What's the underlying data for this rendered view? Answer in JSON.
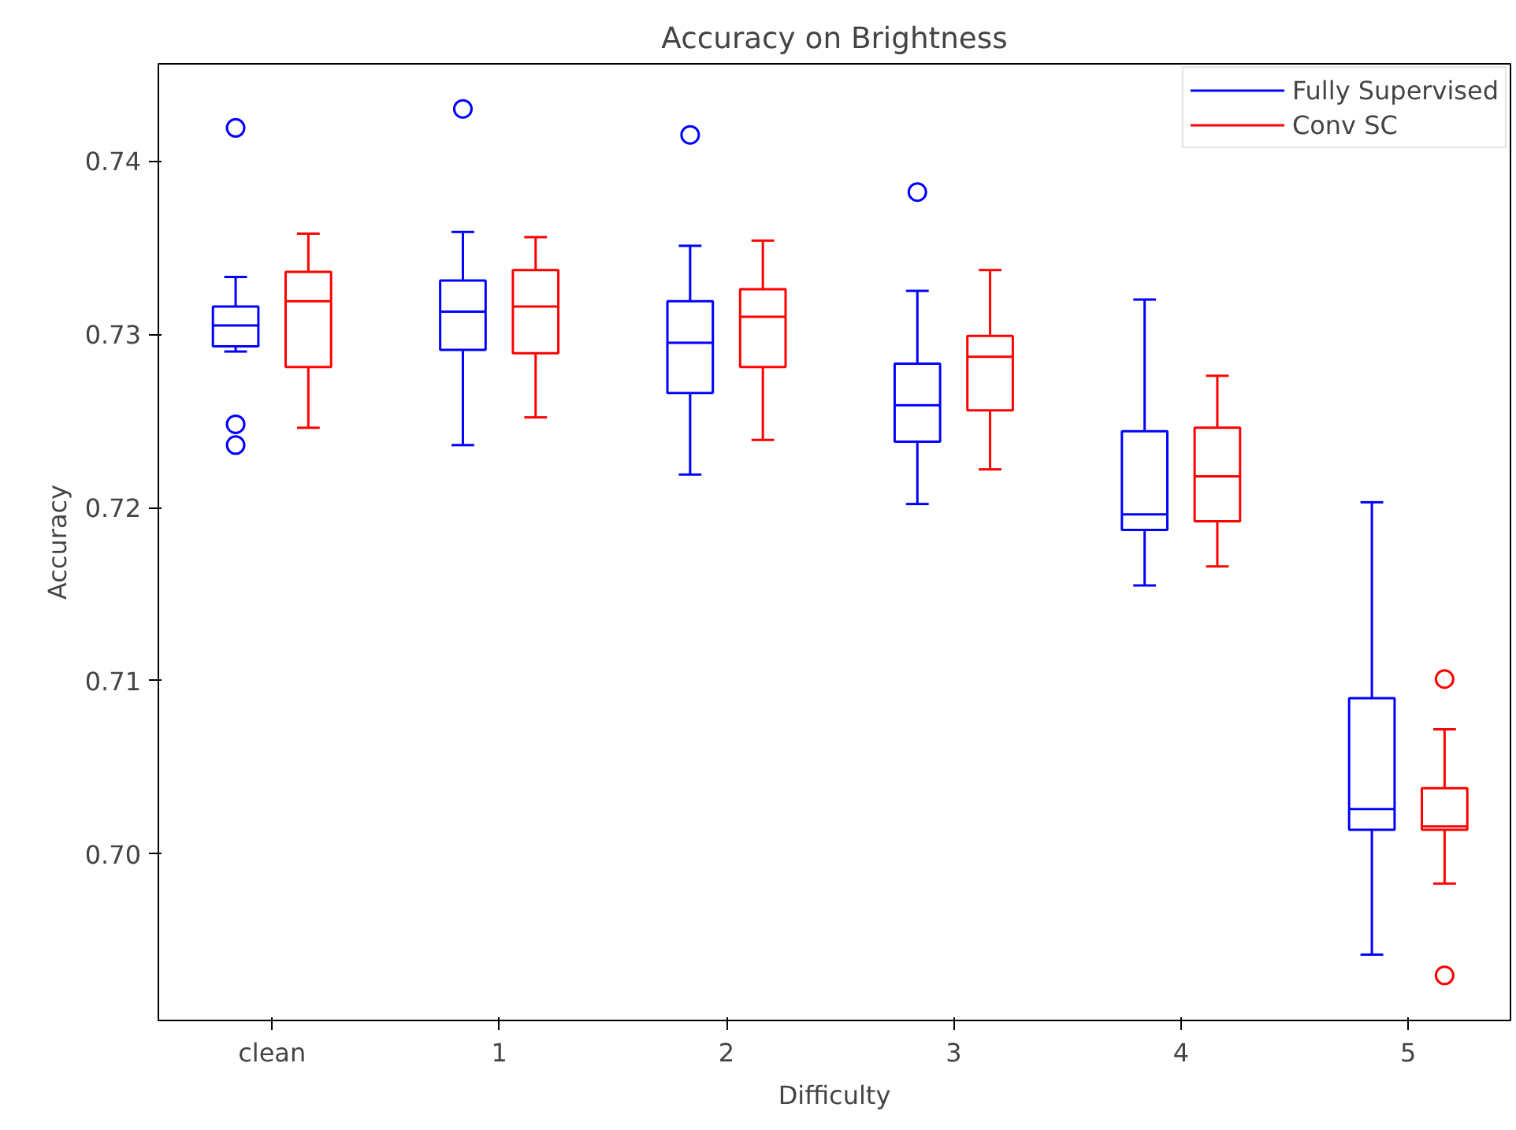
{
  "chart_data": {
    "type": "box",
    "title": "Accuracy on Brightness",
    "xlabel": "Difficulty",
    "ylabel": "Accuracy",
    "categories": [
      "clean",
      "1",
      "2",
      "3",
      "4",
      "5"
    ],
    "ylim": [
      0.6904,
      0.7456
    ],
    "yticks": [
      {
        "value": 0.7,
        "label": "0.70"
      },
      {
        "value": 0.71,
        "label": "0.71"
      },
      {
        "value": 0.72,
        "label": "0.72"
      },
      {
        "value": 0.73,
        "label": "0.73"
      },
      {
        "value": 0.74,
        "label": "0.74"
      }
    ],
    "grid": false,
    "legend": "top right",
    "series": [
      {
        "name": "Fully Supervised",
        "color": "#0000ff",
        "boxes": [
          {
            "low": 0.729,
            "q1": 0.7293,
            "median": 0.7305,
            "q3": 0.7316,
            "high": 0.7333,
            "outliers": [
              0.7419,
              0.7248,
              0.7236
            ]
          },
          {
            "low": 0.7236,
            "q1": 0.7291,
            "median": 0.7313,
            "q3": 0.7331,
            "high": 0.7359,
            "outliers": [
              0.743
            ]
          },
          {
            "low": 0.7219,
            "q1": 0.7266,
            "median": 0.7295,
            "q3": 0.7319,
            "high": 0.7351,
            "outliers": [
              0.7415
            ]
          },
          {
            "low": 0.7202,
            "q1": 0.7238,
            "median": 0.7259,
            "q3": 0.7283,
            "high": 0.7325,
            "outliers": [
              0.7382
            ]
          },
          {
            "low": 0.7155,
            "q1": 0.7187,
            "median": 0.7196,
            "q3": 0.7244,
            "high": 0.732
          },
          {
            "low": 0.6942,
            "q1": 0.7014,
            "median": 0.7026,
            "q3": 0.709,
            "high": 0.7203
          }
        ]
      },
      {
        "name": "Conv SC",
        "color": "#ff0000",
        "boxes": [
          {
            "low": 0.7246,
            "q1": 0.7281,
            "median": 0.7319,
            "q3": 0.7336,
            "high": 0.7358
          },
          {
            "low": 0.7252,
            "q1": 0.7289,
            "median": 0.7316,
            "q3": 0.7337,
            "high": 0.7356
          },
          {
            "low": 0.7239,
            "q1": 0.7281,
            "median": 0.731,
            "q3": 0.7326,
            "high": 0.7354
          },
          {
            "low": 0.7222,
            "q1": 0.7256,
            "median": 0.7287,
            "q3": 0.7299,
            "high": 0.7337
          },
          {
            "low": 0.7166,
            "q1": 0.7192,
            "median": 0.7218,
            "q3": 0.7246,
            "high": 0.7276
          },
          {
            "low": 0.6983,
            "q1": 0.7014,
            "median": 0.7016,
            "q3": 0.7038,
            "high": 0.7072,
            "outliers": [
              0.7101,
              0.693
            ]
          }
        ]
      }
    ]
  }
}
